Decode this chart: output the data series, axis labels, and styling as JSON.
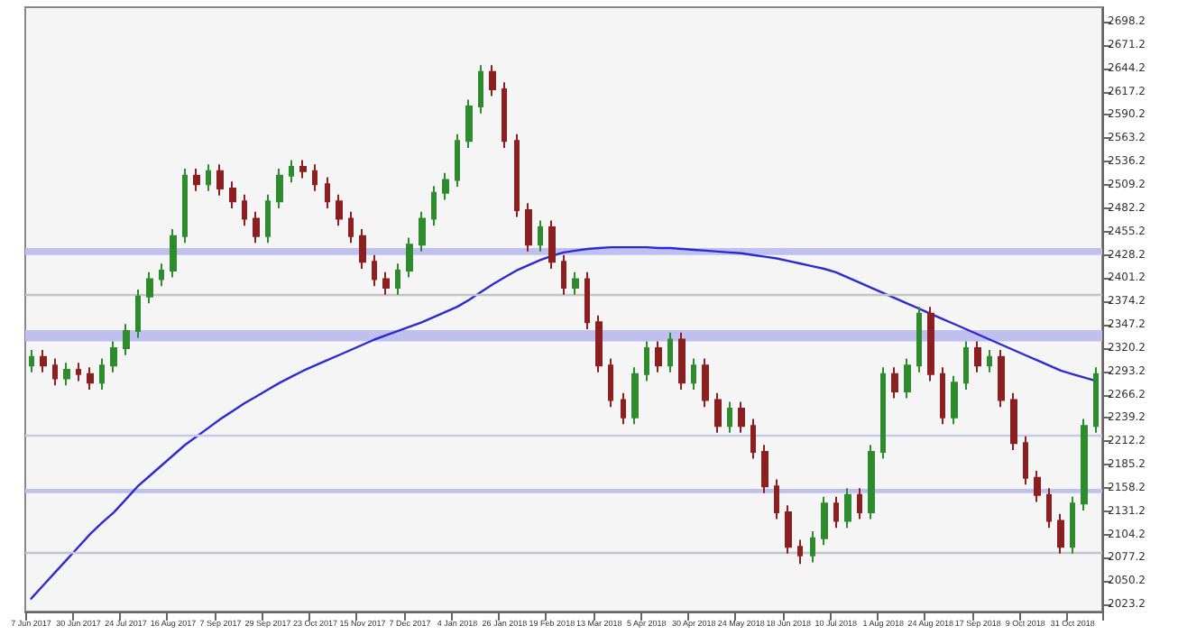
{
  "chart_data": {
    "type": "candlestick",
    "categories": [
      "7 Jun 2017",
      null,
      null,
      null,
      "30 Jun 2017",
      null,
      null,
      null,
      "24 Jul 2017",
      null,
      null,
      null,
      "16 Aug 2017",
      null,
      null,
      null,
      "7 Sep 2017",
      null,
      null,
      null,
      "29 Sep 2017",
      null,
      null,
      null,
      "23 Oct 2017",
      null,
      null,
      null,
      "15 Nov 2017",
      null,
      null,
      null,
      "7 Dec 2017",
      null,
      null,
      null,
      "4 Jan 2018",
      null,
      null,
      null,
      "26 Jan 2018",
      null,
      null,
      null,
      "19 Feb 2018",
      null,
      null,
      null,
      "13 Mar 2018",
      null,
      null,
      null,
      "5 Apr 2018",
      null,
      null,
      null,
      "30 Apr 2018",
      null,
      null,
      null,
      "24 May 2018",
      null,
      null,
      null,
      "18 Jun 2018",
      null,
      null,
      null,
      "10 Jul 2018",
      null,
      null,
      null,
      "1 Aug 2018",
      null,
      null,
      null,
      "24 Aug 2018",
      null,
      null,
      null,
      "17 Sep 2018",
      null,
      null,
      null,
      "9 Oct 2018",
      null,
      null,
      null,
      "31 Oct 2018",
      null,
      null
    ],
    "series": [
      {
        "type": "candlestick",
        "colors": [
          "#2e8b2e",
          "#8b2020",
          "#8b2020",
          "#2e8b2e",
          "#8b2020",
          "#8b2020",
          "#2e8b2e",
          "#2e8b2e",
          "#2e8b2e",
          "#2e8b2e",
          "#2e8b2e",
          "#2e8b2e",
          "#2e8b2e",
          "#2e8b2e",
          "#8b2020",
          "#2e8b2e",
          "#8b2020",
          "#8b2020",
          "#8b2020",
          "#8b2020",
          "#2e8b2e",
          "#2e8b2e",
          "#2e8b2e",
          "#8b2020",
          "#8b2020",
          "#8b2020",
          "#8b2020",
          "#8b2020",
          "#8b2020",
          "#8b2020",
          "#8b2020",
          "#2e8b2e",
          "#2e8b2e",
          "#2e8b2e",
          "#2e8b2e",
          "#2e8b2e",
          "#2e8b2e",
          "#2e8b2e",
          "#2e8b2e",
          "#8b2020",
          "#8b2020",
          "#8b2020",
          "#8b2020",
          "#2e8b2e",
          "#8b2020",
          "#8b2020",
          "#2e8b2e",
          "#8b2020",
          "#8b2020",
          "#8b2020",
          "#8b2020",
          "#2e8b2e",
          "#2e8b2e",
          "#8b2020",
          "#2e8b2e",
          "#8b2020",
          "#2e8b2e",
          "#8b2020",
          "#8b2020",
          "#2e8b2e",
          "#8b2020",
          "#8b2020",
          "#8b2020",
          "#8b2020",
          "#8b2020",
          "#8b2020",
          "#2e8b2e",
          "#2e8b2e",
          "#8b2020",
          "#2e8b2e",
          "#8b2020",
          "#2e8b2e",
          "#2e8b2e",
          "#8b2020",
          "#2e8b2e",
          "#2e8b2e",
          "#8b2020",
          "#8b2020",
          "#2e8b2e",
          "#2e8b2e",
          "#8b2020",
          "#2e8b2e",
          "#8b2020",
          "#8b2020",
          "#8b2020",
          "#8b2020",
          "#8b2020",
          "#8b2020",
          "#2e8b2e",
          "#2e8b2e",
          "#2e8b2e"
        ],
        "ohlc": [
          [
            2300,
            2318,
            2292,
            2310
          ],
          [
            2310,
            2318,
            2292,
            2300
          ],
          [
            2300,
            2308,
            2277,
            2285
          ],
          [
            2285,
            2303,
            2277,
            2295
          ],
          [
            2295,
            2303,
            2282,
            2290
          ],
          [
            2290,
            2298,
            2272,
            2280
          ],
          [
            2280,
            2308,
            2272,
            2300
          ],
          [
            2300,
            2328,
            2292,
            2320
          ],
          [
            2320,
            2348,
            2312,
            2340
          ],
          [
            2340,
            2388,
            2332,
            2380
          ],
          [
            2380,
            2408,
            2372,
            2400
          ],
          [
            2400,
            2418,
            2392,
            2410
          ],
          [
            2410,
            2458,
            2402,
            2450
          ],
          [
            2450,
            2528,
            2442,
            2520
          ],
          [
            2520,
            2528,
            2502,
            2510
          ],
          [
            2510,
            2533,
            2502,
            2525
          ],
          [
            2525,
            2533,
            2497,
            2505
          ],
          [
            2505,
            2513,
            2482,
            2490
          ],
          [
            2490,
            2498,
            2462,
            2470
          ],
          [
            2470,
            2478,
            2442,
            2450
          ],
          [
            2450,
            2498,
            2442,
            2490
          ],
          [
            2490,
            2528,
            2482,
            2520
          ],
          [
            2520,
            2538,
            2512,
            2530
          ],
          [
            2530,
            2538,
            2517,
            2525
          ],
          [
            2525,
            2533,
            2502,
            2510
          ],
          [
            2510,
            2518,
            2482,
            2490
          ],
          [
            2490,
            2498,
            2462,
            2470
          ],
          [
            2470,
            2478,
            2442,
            2450
          ],
          [
            2450,
            2458,
            2412,
            2420
          ],
          [
            2420,
            2428,
            2392,
            2400
          ],
          [
            2400,
            2408,
            2382,
            2390
          ],
          [
            2390,
            2418,
            2382,
            2410
          ],
          [
            2410,
            2448,
            2402,
            2440
          ],
          [
            2440,
            2478,
            2432,
            2470
          ],
          [
            2470,
            2508,
            2462,
            2500
          ],
          [
            2500,
            2523,
            2492,
            2515
          ],
          [
            2515,
            2568,
            2507,
            2560
          ],
          [
            2560,
            2608,
            2552,
            2600
          ],
          [
            2600,
            2648,
            2592,
            2640
          ],
          [
            2640,
            2648,
            2612,
            2620
          ],
          [
            2620,
            2628,
            2552,
            2560
          ],
          [
            2560,
            2568,
            2472,
            2480
          ],
          [
            2480,
            2488,
            2432,
            2440
          ],
          [
            2440,
            2468,
            2432,
            2460
          ],
          [
            2460,
            2468,
            2412,
            2420
          ],
          [
            2420,
            2428,
            2382,
            2390
          ],
          [
            2390,
            2408,
            2382,
            2400
          ],
          [
            2400,
            2408,
            2342,
            2350
          ],
          [
            2350,
            2358,
            2292,
            2300
          ],
          [
            2300,
            2308,
            2252,
            2260
          ],
          [
            2260,
            2268,
            2232,
            2240
          ],
          [
            2240,
            2298,
            2232,
            2290
          ],
          [
            2290,
            2328,
            2282,
            2320
          ],
          [
            2320,
            2328,
            2292,
            2300
          ],
          [
            2300,
            2338,
            2292,
            2330
          ],
          [
            2330,
            2338,
            2272,
            2280
          ],
          [
            2280,
            2308,
            2272,
            2300
          ],
          [
            2300,
            2308,
            2252,
            2260
          ],
          [
            2260,
            2268,
            2222,
            2230
          ],
          [
            2230,
            2258,
            2222,
            2250
          ],
          [
            2250,
            2258,
            2222,
            2230
          ],
          [
            2230,
            2238,
            2192,
            2200
          ],
          [
            2200,
            2208,
            2152,
            2160
          ],
          [
            2160,
            2168,
            2122,
            2130
          ],
          [
            2130,
            2138,
            2082,
            2090
          ],
          [
            2090,
            2098,
            2070,
            2080
          ],
          [
            2080,
            2108,
            2072,
            2100
          ],
          [
            2100,
            2148,
            2092,
            2140
          ],
          [
            2140,
            2148,
            2112,
            2120
          ],
          [
            2120,
            2158,
            2112,
            2150
          ],
          [
            2150,
            2158,
            2122,
            2130
          ],
          [
            2130,
            2208,
            2122,
            2200
          ],
          [
            2200,
            2298,
            2192,
            2290
          ],
          [
            2290,
            2298,
            2262,
            2270
          ],
          [
            2270,
            2308,
            2262,
            2300
          ],
          [
            2300,
            2368,
            2292,
            2360
          ],
          [
            2360,
            2368,
            2282,
            2290
          ],
          [
            2290,
            2298,
            2232,
            2240
          ],
          [
            2240,
            2288,
            2232,
            2280
          ],
          [
            2280,
            2328,
            2272,
            2320
          ],
          [
            2320,
            2328,
            2292,
            2300
          ],
          [
            2300,
            2318,
            2292,
            2310
          ],
          [
            2310,
            2318,
            2252,
            2260
          ],
          [
            2260,
            2268,
            2202,
            2210
          ],
          [
            2210,
            2218,
            2162,
            2170
          ],
          [
            2170,
            2178,
            2142,
            2150
          ],
          [
            2150,
            2158,
            2112,
            2120
          ],
          [
            2120,
            2128,
            2082,
            2090
          ],
          [
            2090,
            2148,
            2082,
            2140
          ],
          [
            2140,
            2238,
            2132,
            2230
          ],
          [
            2230,
            2298,
            2222,
            2290
          ]
        ]
      },
      {
        "type": "line",
        "color": "#2b2bd6",
        "marker": "none",
        "values": [
          2030,
          2045,
          2060,
          2075,
          2090,
          2105,
          2118,
          2130,
          2145,
          2160,
          2172,
          2184,
          2196,
          2208,
          2218,
          2228,
          2238,
          2247,
          2256,
          2264,
          2272,
          2280,
          2287,
          2294,
          2300,
          2306,
          2312,
          2318,
          2324,
          2330,
          2335,
          2340,
          2345,
          2350,
          2356,
          2362,
          2368,
          2376,
          2385,
          2394,
          2402,
          2410,
          2416,
          2422,
          2427,
          2431,
          2433,
          2435,
          2436,
          2437,
          2437,
          2437,
          2437,
          2436,
          2436,
          2435,
          2434,
          2433,
          2432,
          2431,
          2430,
          2428,
          2426,
          2424,
          2421,
          2418,
          2415,
          2412,
          2408,
          2402,
          2396,
          2390,
          2384,
          2378,
          2372,
          2366,
          2360,
          2354,
          2348,
          2342,
          2336,
          2330,
          2324,
          2318,
          2312,
          2306,
          2300,
          2294,
          2290,
          2286,
          2282
        ]
      }
    ],
    "ylim": [
      2015,
      2715
    ],
    "yticks": [
      2023.2,
      2050.2,
      2077.2,
      2104.2,
      2131.2,
      2158.2,
      2185.2,
      2212.2,
      2239.2,
      2266.2,
      2293.2,
      2320.2,
      2347.2,
      2374.2,
      2401.2,
      2428.2,
      2455.2,
      2482.2,
      2509.2,
      2536.2,
      2563.2,
      2590.2,
      2617.2,
      2644.2,
      2671.2,
      2698.2
    ],
    "ref_lines": [
      {
        "axis": "y",
        "value": 2382,
        "color": "#c4c4c4"
      },
      {
        "axis": "y",
        "value": 2220,
        "color": "#c8c8e8"
      },
      {
        "axis": "y",
        "value": 2084,
        "color": "#c4c4cc"
      }
    ],
    "bands": [
      {
        "axis": "y",
        "from": 2428,
        "to": 2436,
        "color": "#c0c0f0"
      },
      {
        "axis": "y",
        "from": 2328,
        "to": 2341,
        "color": "#c0c0f0"
      },
      {
        "axis": "y",
        "from": 2152,
        "to": 2157,
        "color": "#c0c0f0"
      }
    ],
    "grid": false
  }
}
